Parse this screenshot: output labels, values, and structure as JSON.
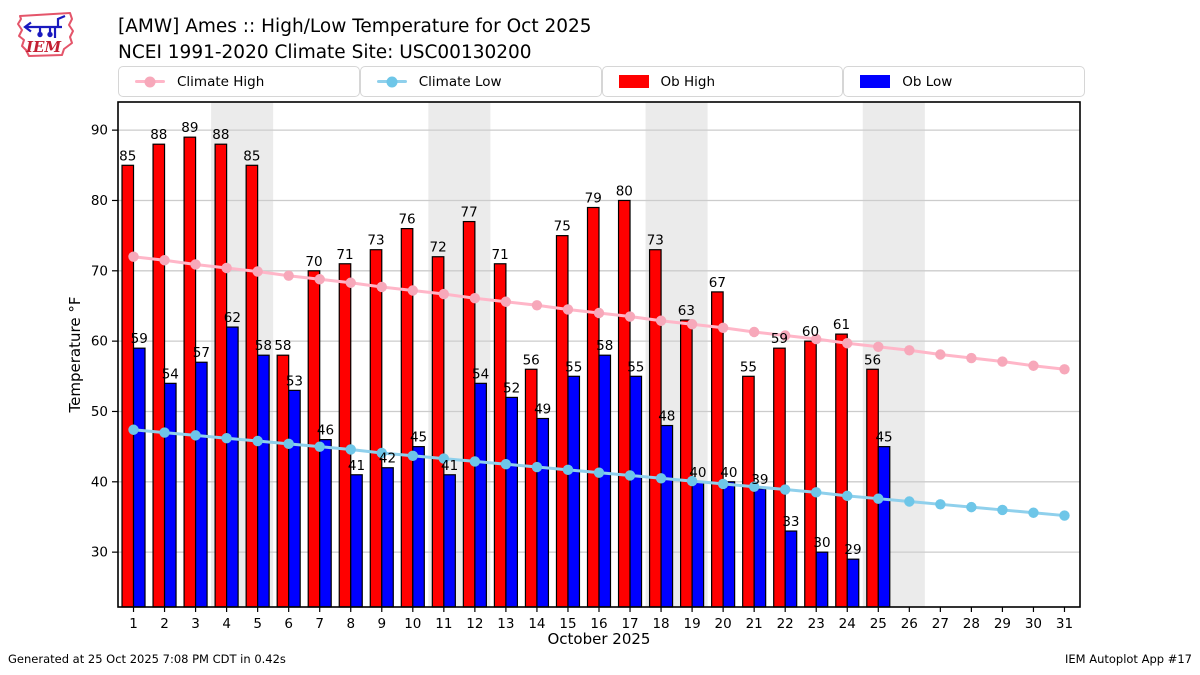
{
  "header": {
    "title_line1": "[AMW] Ames :: High/Low Temperature for Oct 2025",
    "title_line2": "NCEI 1991-2020 Climate Site: USC00130200",
    "logo_text": "IEM"
  },
  "legend": {
    "items": [
      {
        "label": "Climate High",
        "type": "line",
        "color": "#ffb6c8",
        "marker_color": "#f7a8ba"
      },
      {
        "label": "Climate Low",
        "type": "line",
        "color": "#8fd0ec",
        "marker_color": "#6ec6e8"
      },
      {
        "label": "Ob High",
        "type": "bar",
        "color": "#ff0000"
      },
      {
        "label": "Ob Low",
        "type": "bar",
        "color": "#0000ff"
      }
    ]
  },
  "footer": {
    "generated": "Generated at 25 Oct 2025 7:08 PM CDT in 0.42s",
    "credit": "IEM Autoplot App #17"
  },
  "chart_data": {
    "type": "bar",
    "title": "[AMW] Ames :: High/Low Temperature for Oct 2025",
    "subtitle": "NCEI 1991-2020 Climate Site: USC00130200",
    "xlabel": "October 2025",
    "ylabel": "Temperature °F",
    "xlim": [
      0.5,
      31.5
    ],
    "ylim": [
      22.2,
      94.0
    ],
    "yticks": [
      30,
      40,
      50,
      60,
      70,
      80,
      90
    ],
    "xticks": [
      1,
      2,
      3,
      4,
      5,
      6,
      7,
      8,
      9,
      10,
      11,
      12,
      13,
      14,
      15,
      16,
      17,
      18,
      19,
      20,
      21,
      22,
      23,
      24,
      25,
      26,
      27,
      28,
      29,
      30,
      31
    ],
    "grid": true,
    "legend_position": "top",
    "weekend_bands": [
      [
        3.5,
        5.5
      ],
      [
        10.5,
        12.5
      ],
      [
        17.5,
        19.5
      ],
      [
        24.5,
        26.5
      ]
    ],
    "band_color": "#ebebeb",
    "grid_color": "#cccccc",
    "series": [
      {
        "name": "Ob High",
        "type": "bar",
        "color": "#ff0000",
        "x": [
          1,
          2,
          3,
          4,
          5,
          6,
          7,
          8,
          9,
          10,
          11,
          12,
          13,
          14,
          15,
          16,
          17,
          18,
          19,
          20,
          21,
          22,
          23,
          24,
          25
        ],
        "values": [
          85,
          88,
          89,
          88,
          85,
          58,
          70,
          71,
          73,
          76,
          72,
          77,
          71,
          56,
          75,
          79,
          80,
          73,
          63,
          67,
          55,
          59,
          60,
          61,
          56
        ]
      },
      {
        "name": "Ob Low",
        "type": "bar",
        "color": "#0000ff",
        "x": [
          1,
          2,
          3,
          4,
          5,
          6,
          7,
          8,
          9,
          10,
          11,
          12,
          13,
          14,
          15,
          16,
          17,
          18,
          19,
          20,
          21,
          22,
          23,
          24,
          25
        ],
        "values": [
          59,
          54,
          57,
          62,
          58,
          53,
          46,
          41,
          42,
          45,
          41,
          54,
          52,
          49,
          55,
          58,
          55,
          48,
          40,
          40,
          39,
          33,
          30,
          29,
          45
        ]
      },
      {
        "name": "Climate High",
        "type": "line",
        "color": "#ffb6c8",
        "marker_color": "#f7a8ba",
        "x": [
          1,
          2,
          3,
          4,
          5,
          6,
          7,
          8,
          9,
          10,
          11,
          12,
          13,
          14,
          15,
          16,
          17,
          18,
          19,
          20,
          21,
          22,
          23,
          24,
          25,
          26,
          27,
          28,
          29,
          30,
          31
        ],
        "values": [
          72.0,
          71.5,
          70.9,
          70.4,
          69.9,
          69.3,
          68.8,
          68.3,
          67.7,
          67.2,
          66.7,
          66.1,
          65.6,
          65.1,
          64.5,
          64.0,
          63.5,
          62.9,
          62.4,
          61.9,
          61.3,
          60.8,
          60.3,
          59.7,
          59.2,
          58.7,
          58.1,
          57.6,
          57.1,
          56.5,
          56.0
        ]
      },
      {
        "name": "Climate Low",
        "type": "line",
        "color": "#8fd0ec",
        "marker_color": "#6ec6e8",
        "x": [
          1,
          2,
          3,
          4,
          5,
          6,
          7,
          8,
          9,
          10,
          11,
          12,
          13,
          14,
          15,
          16,
          17,
          18,
          19,
          20,
          21,
          22,
          23,
          24,
          25,
          26,
          27,
          28,
          29,
          30,
          31
        ],
        "values": [
          47.4,
          47.0,
          46.6,
          46.2,
          45.8,
          45.4,
          45.0,
          44.6,
          44.1,
          43.7,
          43.3,
          42.9,
          42.5,
          42.1,
          41.7,
          41.3,
          40.9,
          40.5,
          40.1,
          39.7,
          39.3,
          38.9,
          38.5,
          38.0,
          37.6,
          37.2,
          36.8,
          36.4,
          36.0,
          35.6,
          35.2
        ]
      }
    ]
  }
}
